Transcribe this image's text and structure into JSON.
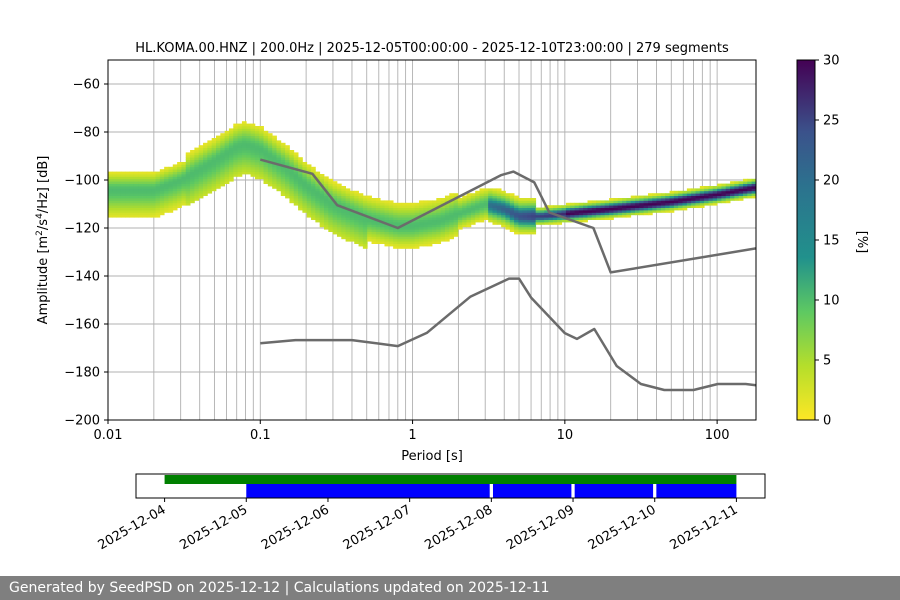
{
  "chart_data": [
    {
      "type": "heatmap",
      "title": "HL.KOMA.00.HNZ | 200.0Hz | 2025-12-05T00:00:00 - 2025-12-10T23:00:00 | 279 segments",
      "xlabel": "Period [s]",
      "ylabel": "Amplitude [m²/s⁴/Hz] [dB]",
      "xscale": "log",
      "xlim": [
        0.01,
        180
      ],
      "ylim": [
        -200,
        -50
      ],
      "x_ticks": [
        {
          "value": 0.01,
          "label": "0.01"
        },
        {
          "value": 0.1,
          "label": "0.1"
        },
        {
          "value": 1,
          "label": "1"
        },
        {
          "value": 10,
          "label": "10"
        },
        {
          "value": 100,
          "label": "100"
        }
      ],
      "y_ticks": [
        {
          "value": -60,
          "label": "−60"
        },
        {
          "value": -80,
          "label": "−80"
        },
        {
          "value": -100,
          "label": "−100"
        },
        {
          "value": -120,
          "label": "−120"
        },
        {
          "value": -140,
          "label": "−140"
        },
        {
          "value": -160,
          "label": "−160"
        },
        {
          "value": -180,
          "label": "−180"
        },
        {
          "value": -200,
          "label": "−200"
        }
      ],
      "grid": true,
      "colorbar": {
        "label": "[%]",
        "range": [
          0,
          30
        ],
        "ticks": [
          {
            "value": 0,
            "label": "0"
          },
          {
            "value": 5,
            "label": "5"
          },
          {
            "value": 10,
            "label": "10"
          },
          {
            "value": 15,
            "label": "15"
          },
          {
            "value": 20,
            "label": "20"
          },
          {
            "value": 25,
            "label": "25"
          },
          {
            "value": 30,
            "label": "30"
          }
        ],
        "colors": [
          "#fde725",
          "#5ec962",
          "#21918c",
          "#3b528b",
          "#440154"
        ]
      },
      "psd_ridge": {
        "period": [
          0.01,
          0.02,
          0.03,
          0.05,
          0.07,
          0.08,
          0.1,
          0.15,
          0.2,
          0.3,
          0.5,
          0.8,
          1,
          1.5,
          2,
          3,
          4,
          5,
          7,
          10,
          20,
          50,
          100,
          180
        ],
        "db": [
          -104,
          -104,
          -100,
          -92,
          -86,
          -85,
          -87,
          -95,
          -102,
          -110,
          -116,
          -119,
          -119,
          -117,
          -114,
          -110,
          -112,
          -115,
          -115,
          -114,
          -112,
          -109,
          -106,
          -103
        ]
      },
      "series": [
        {
          "name": "NHNM",
          "period": [
            0.1,
            0.22,
            0.32,
            0.8,
            3.8,
            4.6,
            6.3,
            7.9,
            15.4,
            20,
            180
          ],
          "db": [
            -91.5,
            -97.4,
            -110.5,
            -120,
            -98,
            -96.5,
            -101,
            -113.5,
            -120,
            -138.5,
            -128.5
          ]
        },
        {
          "name": "NLNM",
          "period": [
            0.1,
            0.17,
            0.4,
            0.8,
            1.24,
            2.4,
            4.3,
            5.0,
            6.0,
            10,
            12,
            15.6,
            21.9,
            31.6,
            45,
            70,
            101,
            154,
            180
          ],
          "db": [
            -168,
            -166.7,
            -166.7,
            -169.2,
            -163.7,
            -148.6,
            -141.1,
            -141.1,
            -149,
            -163.8,
            -166.2,
            -162.1,
            -177.5,
            -185,
            -187.5,
            -187.5,
            -185,
            -185,
            -185.5
          ]
        }
      ]
    },
    {
      "type": "timeline",
      "x_ticks": [
        "2025-12-04",
        "2025-12-05",
        "2025-12-06",
        "2025-12-07",
        "2025-12-08",
        "2025-12-09",
        "2025-12-10",
        "2025-12-11"
      ],
      "xlim_days": [
        -0.35,
        7.35
      ],
      "available_data": {
        "color": "#008000",
        "from_day": 0.0,
        "to_day": 7.0
      },
      "processed_segments": {
        "color": "#0000ff",
        "ranges": [
          [
            1.0,
            3.98
          ],
          [
            4.02,
            4.98
          ],
          [
            5.02,
            5.98
          ],
          [
            6.02,
            7.0
          ]
        ]
      }
    }
  ],
  "footer": {
    "text": "Generated by SeedPSD on 2025-12-12 | Calculations updated on 2025-12-11"
  }
}
